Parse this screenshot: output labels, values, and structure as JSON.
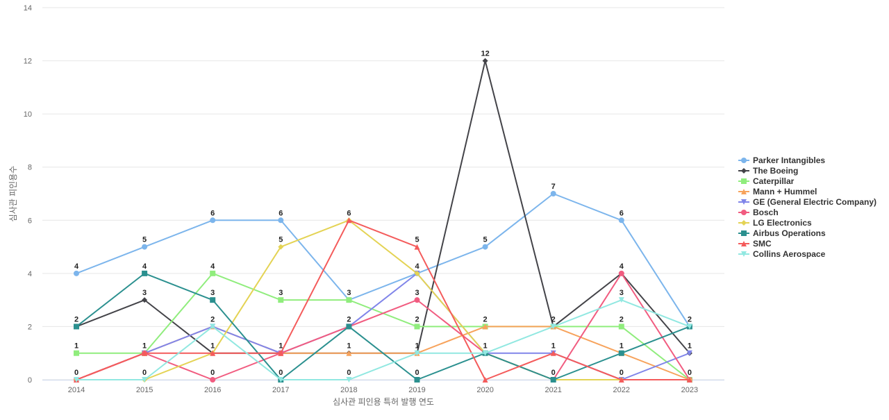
{
  "chart_data": {
    "type": "line",
    "title": "",
    "xlabel": "심사관 피인용 특허 발행 연도",
    "ylabel": "심사관 피인용수",
    "categories": [
      "2014",
      "2015",
      "2016",
      "2017",
      "2018",
      "2019",
      "2020",
      "2021",
      "2022",
      "2023"
    ],
    "ylim": [
      0,
      14
    ],
    "yticks": [
      0,
      2,
      4,
      6,
      8,
      10,
      12,
      14
    ],
    "grid": true,
    "legend_position": "right",
    "series": [
      {
        "name": "Parker Intangibles",
        "color": "#7cb5ec",
        "marker": "circle",
        "values": [
          4,
          5,
          6,
          6,
          3,
          4,
          5,
          7,
          6,
          2
        ]
      },
      {
        "name": "The Boeing",
        "color": "#434348",
        "marker": "diamond",
        "values": [
          2,
          3,
          1,
          1,
          1,
          1,
          12,
          2,
          4,
          1
        ]
      },
      {
        "name": "Caterpillar",
        "color": "#90ed7d",
        "marker": "square",
        "values": [
          1,
          1,
          4,
          3,
          3,
          2,
          2,
          2,
          2,
          0
        ]
      },
      {
        "name": "Mann + Hummel",
        "color": "#f7a35c",
        "marker": "triangle",
        "values": [
          0,
          1,
          2,
          1,
          1,
          1,
          2,
          2,
          1,
          0
        ]
      },
      {
        "name": "GE (General Electric Company)",
        "color": "#8085e9",
        "marker": "triangle-down",
        "values": [
          0,
          1,
          2,
          1,
          2,
          4,
          1,
          1,
          0,
          1
        ]
      },
      {
        "name": "Bosch",
        "color": "#f15c80",
        "marker": "circle",
        "values": [
          0,
          1,
          0,
          1,
          2,
          3,
          1,
          0,
          4,
          0
        ]
      },
      {
        "name": "LG Electronics",
        "color": "#e4d354",
        "marker": "diamond",
        "values": [
          0,
          0,
          1,
          5,
          6,
          4,
          1,
          0,
          0,
          0
        ]
      },
      {
        "name": "Airbus Operations",
        "color": "#2b908f",
        "marker": "square",
        "values": [
          2,
          4,
          3,
          0,
          2,
          0,
          1,
          0,
          1,
          2
        ]
      },
      {
        "name": "SMC",
        "color": "#f45b5b",
        "marker": "triangle",
        "values": [
          0,
          1,
          1,
          1,
          6,
          5,
          0,
          1,
          0,
          0
        ]
      },
      {
        "name": "Collins Aerospace",
        "color": "#91e8e1",
        "marker": "triangle-down",
        "values": [
          0,
          0,
          2,
          0,
          0,
          1,
          1,
          2,
          3,
          2
        ]
      }
    ],
    "data_labels": [
      {
        "x": "2014",
        "value": 4
      },
      {
        "x": "2014",
        "value": 2
      },
      {
        "x": "2014",
        "value": 1
      },
      {
        "x": "2014",
        "value": 0
      },
      {
        "x": "2015",
        "value": 5
      },
      {
        "x": "2015",
        "value": 4
      },
      {
        "x": "2015",
        "value": 3
      },
      {
        "x": "2015",
        "value": 1
      },
      {
        "x": "2015",
        "value": 0
      },
      {
        "x": "2016",
        "value": 6
      },
      {
        "x": "2016",
        "value": 4
      },
      {
        "x": "2016",
        "value": 3
      },
      {
        "x": "2016",
        "value": 2
      },
      {
        "x": "2016",
        "value": 1
      },
      {
        "x": "2016",
        "value": 0
      },
      {
        "x": "2017",
        "value": 6
      },
      {
        "x": "2017",
        "value": 5
      },
      {
        "x": "2017",
        "value": 3
      },
      {
        "x": "2017",
        "value": 1
      },
      {
        "x": "2017",
        "value": 0
      },
      {
        "x": "2018",
        "value": 6
      },
      {
        "x": "2018",
        "value": 3
      },
      {
        "x": "2018",
        "value": 2
      },
      {
        "x": "2018",
        "value": 1
      },
      {
        "x": "2018",
        "value": 0
      },
      {
        "x": "2019",
        "value": 5
      },
      {
        "x": "2019",
        "value": 4
      },
      {
        "x": "2019",
        "value": 3
      },
      {
        "x": "2019",
        "value": 2
      },
      {
        "x": "2019",
        "value": 1
      },
      {
        "x": "2019",
        "value": 0
      },
      {
        "x": "2020",
        "value": 12
      },
      {
        "x": "2020",
        "value": 5
      },
      {
        "x": "2020",
        "value": 2
      },
      {
        "x": "2020",
        "value": 1
      },
      {
        "x": "2021",
        "value": 7
      },
      {
        "x": "2021",
        "value": 2
      },
      {
        "x": "2021",
        "value": 1
      },
      {
        "x": "2021",
        "value": 0
      },
      {
        "x": "2022",
        "value": 6
      },
      {
        "x": "2022",
        "value": 4
      },
      {
        "x": "2022",
        "value": 3
      },
      {
        "x": "2022",
        "value": 2
      },
      {
        "x": "2022",
        "value": 1
      },
      {
        "x": "2022",
        "value": 0
      },
      {
        "x": "2023",
        "value": 2
      },
      {
        "x": "2023",
        "value": 1
      },
      {
        "x": "2023",
        "value": 0
      }
    ]
  }
}
